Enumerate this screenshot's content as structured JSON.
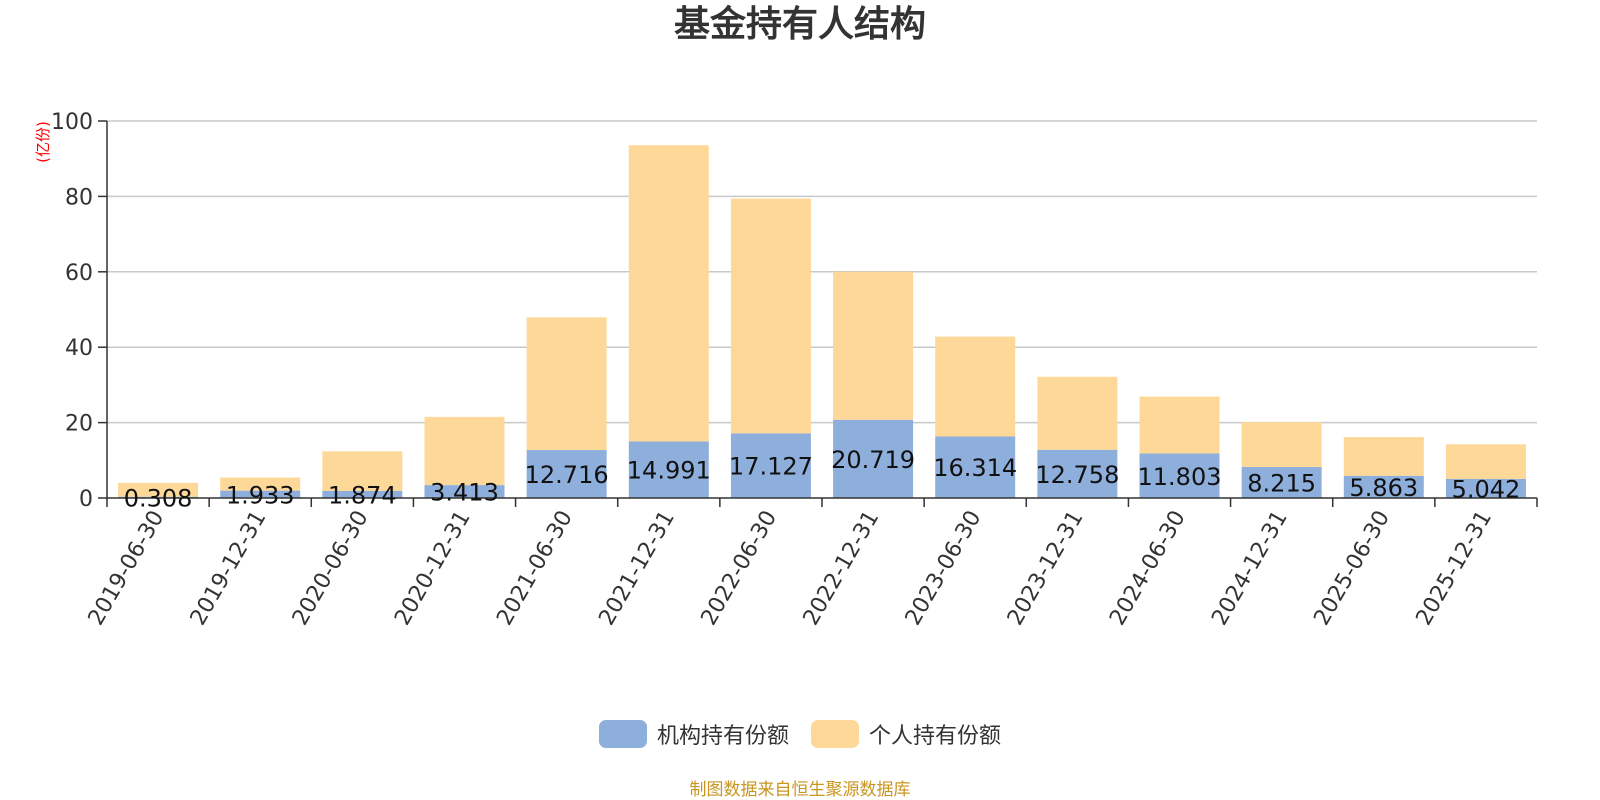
{
  "chart_data": {
    "type": "bar",
    "stacked": true,
    "title": "基金持有人结构",
    "ylabel": "(亿份)",
    "ylim": [
      0,
      100
    ],
    "yticks": [
      0,
      20,
      40,
      60,
      80,
      100
    ],
    "grid": true,
    "legend_position": "bottom",
    "categories": [
      "2019-06-30",
      "2019-12-31",
      "2020-06-30",
      "2020-12-31",
      "2021-06-30",
      "2021-12-31",
      "2022-06-30",
      "2022-12-31",
      "2023-06-30",
      "2023-12-31",
      "2024-06-30",
      "2024-12-31",
      "2025-06-30",
      "2025-12-31"
    ],
    "series": [
      {
        "name": "机构持有份额",
        "color": "#8eaedb",
        "values": [
          0.308,
          1.933,
          1.874,
          3.413,
          12.716,
          14.991,
          17.127,
          20.719,
          16.314,
          12.758,
          11.803,
          8.215,
          5.863,
          5.042
        ],
        "labels": [
          "0.308",
          "1.933",
          "1.874",
          "3.413",
          "12.716",
          "14.991",
          "17.127",
          "20.719",
          "16.314",
          "12.758",
          "11.803",
          "8.215",
          "5.863",
          "5.042"
        ]
      },
      {
        "name": "个人持有份额",
        "color": "#fed899",
        "values": [
          3.7,
          3.5,
          10.5,
          18.1,
          35.2,
          78.6,
          62.3,
          39.3,
          26.5,
          19.4,
          15.1,
          11.9,
          10.3,
          9.2
        ]
      }
    ]
  },
  "colors": {
    "title": "#333333",
    "axis_label": "#ff0000",
    "source": "#c8961e",
    "grid": "#c8c8c8"
  },
  "source_note": "制图数据来自恒生聚源数据库"
}
